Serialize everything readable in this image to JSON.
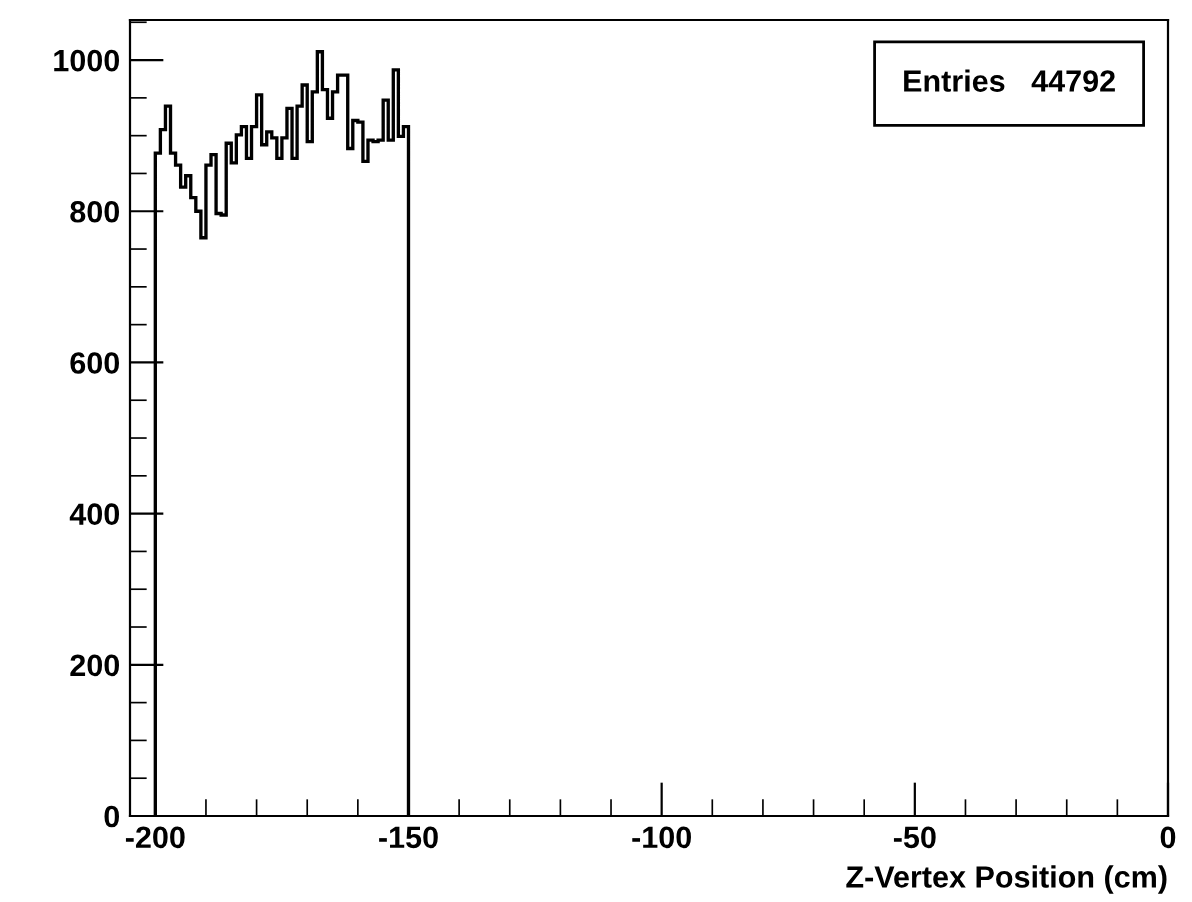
{
  "chart_data": {
    "type": "histogram",
    "xlabel": "Z-Vertex Position (cm)",
    "color": "#000000",
    "bins": [
      -200,
      -199,
      -198,
      -197,
      -196,
      -195,
      -194,
      -193,
      -192,
      -191,
      -190,
      -189,
      -188,
      -187,
      -186,
      -185,
      -184,
      -183,
      -182,
      -181,
      -180,
      -179,
      -178,
      -177,
      -176,
      -175,
      -174,
      -173,
      -172,
      -171,
      -170,
      -169,
      -168,
      -167,
      -166,
      -165,
      -164,
      -163,
      -162,
      -161,
      -160,
      -159,
      -158,
      -157,
      -156,
      -155,
      -154,
      -153,
      -152,
      -151,
      -150
    ],
    "values": [
      877,
      908,
      939,
      877,
      861,
      832,
      847,
      818,
      800,
      765,
      861,
      875,
      797,
      795,
      890,
      864,
      901,
      912,
      870,
      912,
      954,
      888,
      905,
      897,
      870,
      897,
      936,
      870,
      939,
      967,
      892,
      958,
      1011,
      961,
      923,
      958,
      980,
      980,
      883,
      920,
      918,
      866,
      894,
      892,
      894,
      947,
      894,
      987,
      899,
      912
    ],
    "xlim": [
      -205,
      0
    ],
    "xticks": [
      -200,
      -150,
      -100,
      -50,
      0
    ],
    "ylim": [
      0,
      1053
    ],
    "yticks": [
      0,
      200,
      400,
      600,
      800,
      1000
    ],
    "grid": false,
    "annotations": [
      "Entries   44792"
    ]
  }
}
